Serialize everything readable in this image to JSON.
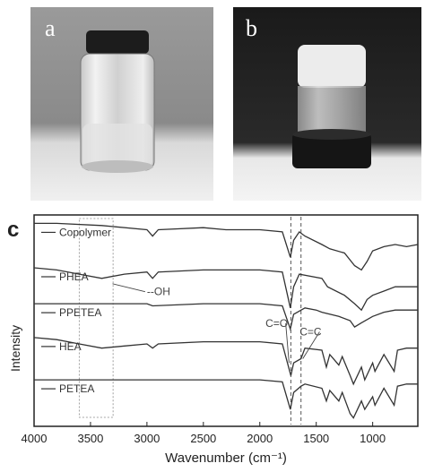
{
  "panels": {
    "a": {
      "label": "a",
      "content": "photo"
    },
    "b": {
      "label": "b",
      "content": "photo"
    },
    "c": {
      "label": "c"
    }
  },
  "chart_data": {
    "type": "line",
    "xlabel": "Wavenumber (cm⁻¹)",
    "ylabel": "Intensity",
    "xlim": [
      4000,
      600
    ],
    "x_reversed": true,
    "xticks": [
      "4000",
      "3500",
      "3000",
      "2500",
      "2000",
      "1500",
      "1000"
    ],
    "series": [
      {
        "name": "Copolymer",
        "legend_label": "Copolymer",
        "points": [
          [
            4000,
            0.96
          ],
          [
            3800,
            0.96
          ],
          [
            3400,
            0.95
          ],
          [
            3000,
            0.93
          ],
          [
            2950,
            0.9
          ],
          [
            2900,
            0.93
          ],
          [
            2500,
            0.94
          ],
          [
            2300,
            0.93
          ],
          [
            2000,
            0.93
          ],
          [
            1800,
            0.92
          ],
          [
            1730,
            0.8
          ],
          [
            1700,
            0.88
          ],
          [
            1650,
            0.92
          ],
          [
            1600,
            0.9
          ],
          [
            1450,
            0.86
          ],
          [
            1380,
            0.84
          ],
          [
            1250,
            0.82
          ],
          [
            1160,
            0.76
          ],
          [
            1100,
            0.74
          ],
          [
            1050,
            0.78
          ],
          [
            1000,
            0.83
          ],
          [
            900,
            0.85
          ],
          [
            800,
            0.86
          ],
          [
            700,
            0.85
          ],
          [
            600,
            0.86
          ]
        ]
      },
      {
        "name": "PHEA",
        "legend_label": "PHEA",
        "points": [
          [
            4000,
            0.75
          ],
          [
            3800,
            0.74
          ],
          [
            3600,
            0.72
          ],
          [
            3400,
            0.7
          ],
          [
            3200,
            0.72
          ],
          [
            3000,
            0.73
          ],
          [
            2950,
            0.7
          ],
          [
            2900,
            0.73
          ],
          [
            2500,
            0.74
          ],
          [
            2000,
            0.74
          ],
          [
            1800,
            0.73
          ],
          [
            1730,
            0.56
          ],
          [
            1700,
            0.66
          ],
          [
            1650,
            0.72
          ],
          [
            1450,
            0.7
          ],
          [
            1400,
            0.66
          ],
          [
            1250,
            0.62
          ],
          [
            1160,
            0.58
          ],
          [
            1100,
            0.55
          ],
          [
            1050,
            0.6
          ],
          [
            1000,
            0.62
          ],
          [
            900,
            0.64
          ],
          [
            800,
            0.66
          ],
          [
            700,
            0.66
          ],
          [
            600,
            0.66
          ]
        ]
      },
      {
        "name": "PPETEA",
        "legend_label": "PPETEA",
        "points": [
          [
            4000,
            0.58
          ],
          [
            3500,
            0.58
          ],
          [
            3000,
            0.58
          ],
          [
            2950,
            0.57
          ],
          [
            2500,
            0.58
          ],
          [
            2000,
            0.58
          ],
          [
            1800,
            0.57
          ],
          [
            1730,
            0.46
          ],
          [
            1700,
            0.53
          ],
          [
            1600,
            0.56
          ],
          [
            1500,
            0.55
          ],
          [
            1450,
            0.54
          ],
          [
            1300,
            0.52
          ],
          [
            1200,
            0.5
          ],
          [
            1160,
            0.47
          ],
          [
            1100,
            0.49
          ],
          [
            1000,
            0.52
          ],
          [
            900,
            0.54
          ],
          [
            800,
            0.55
          ],
          [
            700,
            0.55
          ],
          [
            600,
            0.55
          ]
        ]
      },
      {
        "name": "HEA",
        "legend_label": "HEA",
        "points": [
          [
            4000,
            0.42
          ],
          [
            3800,
            0.41
          ],
          [
            3600,
            0.39
          ],
          [
            3400,
            0.37
          ],
          [
            3200,
            0.38
          ],
          [
            3000,
            0.39
          ],
          [
            2950,
            0.37
          ],
          [
            2900,
            0.39
          ],
          [
            2500,
            0.4
          ],
          [
            2000,
            0.4
          ],
          [
            1800,
            0.39
          ],
          [
            1725,
            0.24
          ],
          [
            1700,
            0.3
          ],
          [
            1635,
            0.32
          ],
          [
            1600,
            0.37
          ],
          [
            1450,
            0.36
          ],
          [
            1410,
            0.28
          ],
          [
            1380,
            0.34
          ],
          [
            1300,
            0.29
          ],
          [
            1270,
            0.33
          ],
          [
            1200,
            0.24
          ],
          [
            1170,
            0.2
          ],
          [
            1100,
            0.28
          ],
          [
            1070,
            0.22
          ],
          [
            1000,
            0.3
          ],
          [
            980,
            0.26
          ],
          [
            900,
            0.34
          ],
          [
            810,
            0.26
          ],
          [
            780,
            0.36
          ],
          [
            700,
            0.37
          ],
          [
            600,
            0.37
          ]
        ]
      },
      {
        "name": "PETEA",
        "legend_label": "PETEA",
        "points": [
          [
            4000,
            0.22
          ],
          [
            3500,
            0.22
          ],
          [
            3000,
            0.22
          ],
          [
            2500,
            0.22
          ],
          [
            2000,
            0.22
          ],
          [
            1800,
            0.21
          ],
          [
            1730,
            0.08
          ],
          [
            1700,
            0.16
          ],
          [
            1635,
            0.19
          ],
          [
            1600,
            0.2
          ],
          [
            1450,
            0.18
          ],
          [
            1410,
            0.12
          ],
          [
            1380,
            0.17
          ],
          [
            1300,
            0.12
          ],
          [
            1270,
            0.16
          ],
          [
            1200,
            0.06
          ],
          [
            1170,
            0.04
          ],
          [
            1100,
            0.12
          ],
          [
            1070,
            0.08
          ],
          [
            1000,
            0.14
          ],
          [
            980,
            0.1
          ],
          [
            900,
            0.18
          ],
          [
            810,
            0.1
          ],
          [
            780,
            0.19
          ],
          [
            700,
            0.2
          ],
          [
            600,
            0.2
          ]
        ]
      }
    ],
    "annotations": [
      {
        "text": "--OH",
        "target_wavenumber": 3400
      },
      {
        "text": "C=O",
        "target_wavenumber": 1725
      },
      {
        "text": "C=C",
        "target_wavenumber": 1635
      }
    ],
    "highlight_range": [
      3600,
      3300
    ],
    "reference_lines": [
      1725,
      1635
    ],
    "grid": false,
    "legend": "inline-left"
  },
  "colors": {
    "line": "#333333",
    "annotation": "#444444",
    "frame": "#222222"
  }
}
